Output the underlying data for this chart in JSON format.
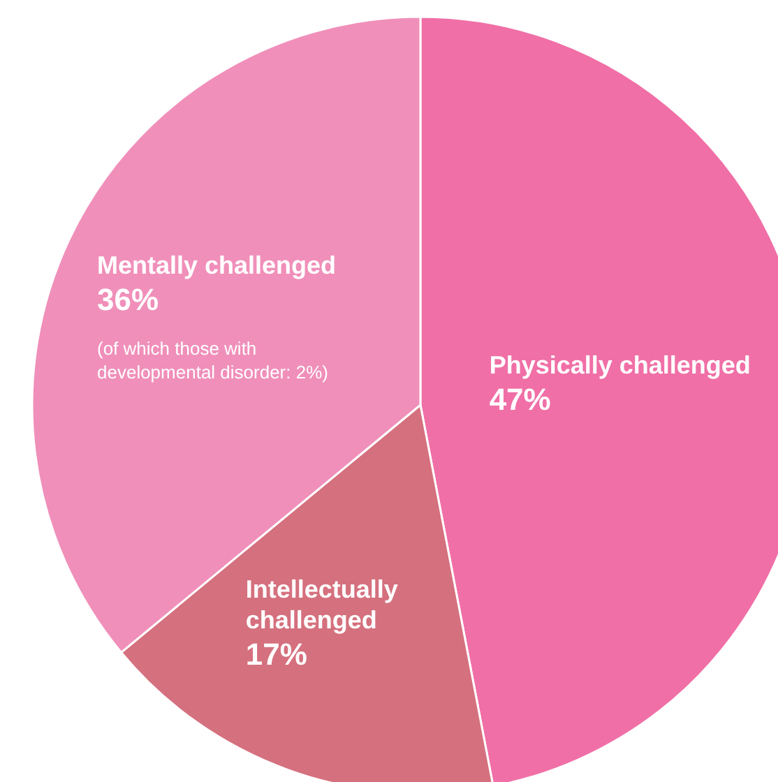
{
  "chart_data": {
    "type": "pie",
    "categories": [
      "Physically challenged",
      "Intellectually challenged",
      "Mentally challenged"
    ],
    "values": [
      47,
      17,
      36
    ],
    "colors": [
      "#f06fa6",
      "#d5707e",
      "#f08fba"
    ],
    "value_labels": [
      "47%",
      "17%",
      "36%"
    ],
    "annotations": [
      {
        "text": "(of which those with developmental disorder: 2%)",
        "x": "Mentally challenged"
      }
    ]
  }
}
